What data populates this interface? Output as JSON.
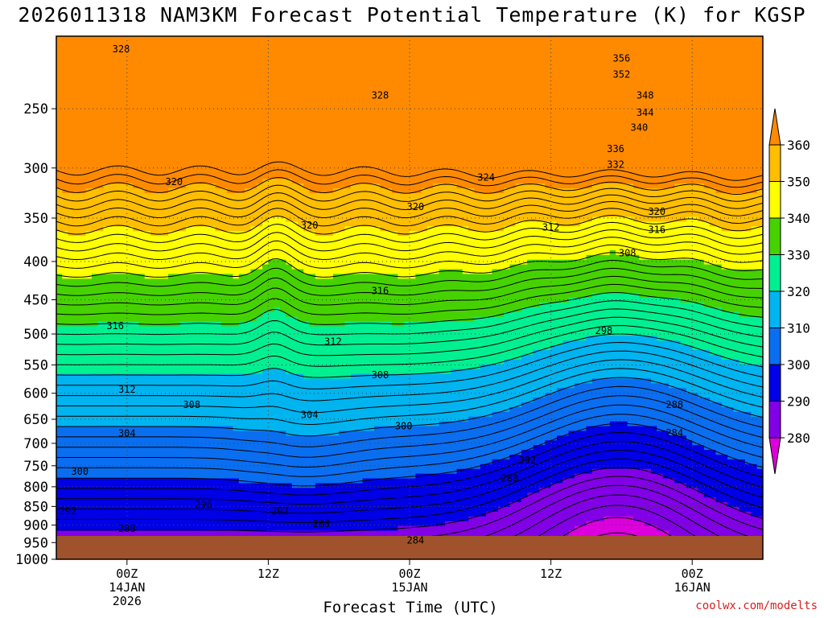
{
  "title": "2026011318 NAM3KM Forecast Potential Temperature (K) for KGSP",
  "credit": "coolwx.com/modelts",
  "chart_data": {
    "type": "contour",
    "xlabel": "Forecast Time (UTC)",
    "ylabel": "",
    "y_axis": "pressure (hPa), inverted",
    "ylim": [
      1000,
      200
    ],
    "y_ticks": [
      "250",
      "300",
      "350",
      "400",
      "450",
      "500",
      "550",
      "600",
      "650",
      "700",
      "750",
      "800",
      "850",
      "900",
      "950",
      "1000"
    ],
    "x_ticks": [
      {
        "lines": [
          "00Z",
          "14JAN",
          "2026"
        ]
      },
      {
        "lines": [
          "12Z"
        ]
      },
      {
        "lines": [
          "00Z",
          "15JAN"
        ]
      },
      {
        "lines": [
          "12Z"
        ]
      },
      {
        "lines": [
          "00Z",
          "16JAN"
        ]
      }
    ],
    "x_tick_hours": [
      6,
      18,
      30,
      42,
      54
    ],
    "x_range_hours": [
      0,
      60
    ],
    "contour_interval": 2,
    "fill_interval": 10,
    "colorbar": {
      "ticks": [
        "360",
        "350",
        "340",
        "330",
        "320",
        "310",
        "300",
        "290",
        "280"
      ],
      "colors": [
        "#ff8a00",
        "#ffbe00",
        "#ffff00",
        "#46d200",
        "#00f091",
        "#00b4f0",
        "#0a6ef0",
        "#0000e6",
        "#8200e6",
        "#dc00dc"
      ]
    },
    "ground_color": "#a0522d",
    "contour_labels": [
      {
        "text": "328",
        "hour": 5.5,
        "p": 208
      },
      {
        "text": "356",
        "hour": 48,
        "p": 214
      },
      {
        "text": "352",
        "hour": 48,
        "p": 225
      },
      {
        "text": "348",
        "hour": 50,
        "p": 240
      },
      {
        "text": "344",
        "hour": 50,
        "p": 253
      },
      {
        "text": "340",
        "hour": 49.5,
        "p": 265
      },
      {
        "text": "328",
        "hour": 27.5,
        "p": 240
      },
      {
        "text": "336",
        "hour": 47.5,
        "p": 283
      },
      {
        "text": "332",
        "hour": 47.5,
        "p": 297
      },
      {
        "text": "324",
        "hour": 36.5,
        "p": 309
      },
      {
        "text": "320",
        "hour": 10,
        "p": 313
      },
      {
        "text": "320",
        "hour": 30.5,
        "p": 338
      },
      {
        "text": "320",
        "hour": 51,
        "p": 343
      },
      {
        "text": "320",
        "hour": 21.5,
        "p": 358
      },
      {
        "text": "312",
        "hour": 42,
        "p": 360
      },
      {
        "text": "316",
        "hour": 51,
        "p": 363
      },
      {
        "text": "308",
        "hour": 48.5,
        "p": 390
      },
      {
        "text": "316",
        "hour": 27.5,
        "p": 438
      },
      {
        "text": "316",
        "hour": 5,
        "p": 488
      },
      {
        "text": "312",
        "hour": 23.5,
        "p": 512
      },
      {
        "text": "298",
        "hour": 46.5,
        "p": 495
      },
      {
        "text": "308",
        "hour": 27.5,
        "p": 567
      },
      {
        "text": "312",
        "hour": 6,
        "p": 593
      },
      {
        "text": "308",
        "hour": 11.5,
        "p": 622
      },
      {
        "text": "304",
        "hour": 21.5,
        "p": 641
      },
      {
        "text": "288",
        "hour": 52.5,
        "p": 622
      },
      {
        "text": "300",
        "hour": 29.5,
        "p": 664
      },
      {
        "text": "284",
        "hour": 52.5,
        "p": 678
      },
      {
        "text": "304",
        "hour": 6,
        "p": 679
      },
      {
        "text": "292",
        "hour": 40,
        "p": 737
      },
      {
        "text": "288",
        "hour": 38.5,
        "p": 780
      },
      {
        "text": "300",
        "hour": 2,
        "p": 763
      },
      {
        "text": "296",
        "hour": 12.5,
        "p": 845
      },
      {
        "text": "292",
        "hour": 1,
        "p": 862
      },
      {
        "text": "292",
        "hour": 19,
        "p": 862
      },
      {
        "text": "288",
        "hour": 22.5,
        "p": 897
      },
      {
        "text": "288",
        "hour": 6,
        "p": 910
      },
      {
        "text": "284",
        "hour": 30.5,
        "p": 943
      }
    ]
  }
}
